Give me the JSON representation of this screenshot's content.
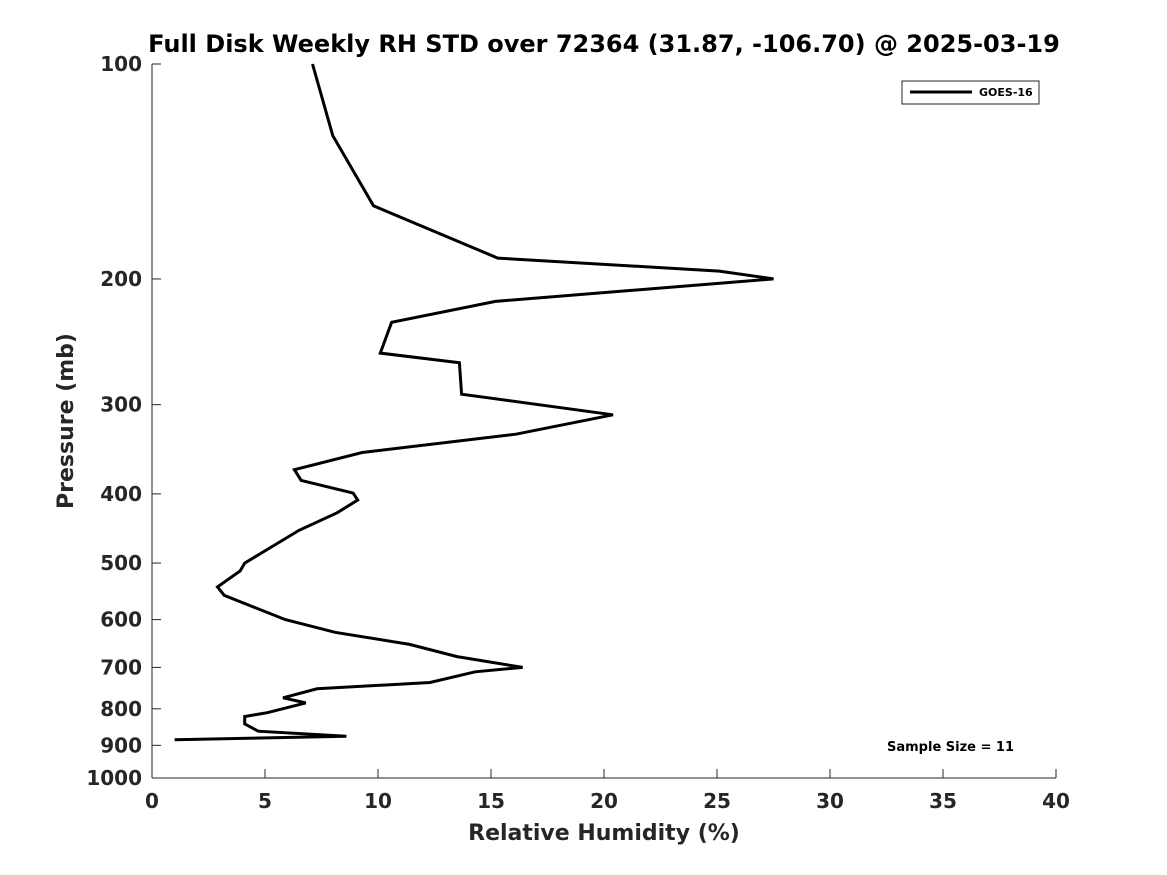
{
  "chart_data": {
    "type": "line",
    "title": "Full Disk Weekly RH STD over 72364 (31.87, -106.70) @ 2025-03-19",
    "xlabel": "Relative Humidity (%)",
    "ylabel": "Pressure (mb)",
    "xlim": [
      0,
      40
    ],
    "ylim": [
      100,
      1000
    ],
    "y_scale": "log",
    "y_reversed": true,
    "x_ticks": [
      0,
      5,
      10,
      15,
      20,
      25,
      30,
      35,
      40
    ],
    "y_ticks": [
      100,
      200,
      300,
      400,
      500,
      600,
      700,
      800,
      900,
      1000
    ],
    "grid": false,
    "legend_position": "top-right",
    "series": [
      {
        "name": "GOES-16",
        "color": "#000000",
        "x": [
          7.1,
          8.0,
          9.8,
          15.3,
          25.1,
          27.5,
          15.2,
          10.6,
          10.1,
          13.6,
          13.7,
          20.4,
          16.1,
          9.3,
          6.3,
          6.6,
          8.9,
          9.1,
          8.2,
          6.5,
          4.1,
          3.9,
          2.9,
          3.2,
          5.9,
          8.1,
          11.4,
          13.5,
          16.4,
          14.3,
          12.3,
          7.3,
          5.8,
          6.8,
          5.1,
          4.1,
          4.1,
          4.7,
          8.6,
          1.0
        ],
        "y": [
          100,
          126,
          158,
          187,
          195,
          200,
          215,
          230,
          254,
          262,
          290,
          310,
          330,
          350,
          370,
          383,
          399,
          408,
          425,
          450,
          500,
          513,
          540,
          555,
          600,
          625,
          650,
          676,
          700,
          710,
          735,
          750,
          772,
          785,
          810,
          820,
          840,
          860,
          874,
          884
        ]
      }
    ],
    "annotations": [
      "Sample Size = 11"
    ]
  }
}
